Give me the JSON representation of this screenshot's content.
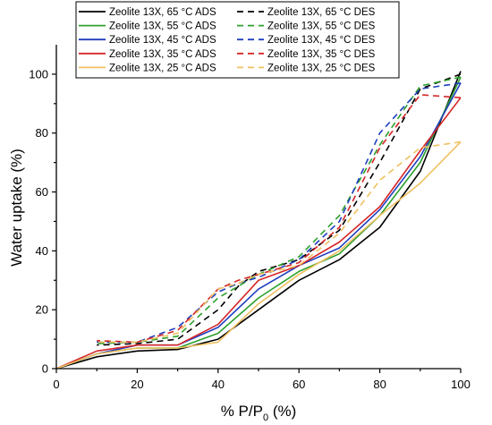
{
  "chart_data": {
    "type": "line",
    "xlabel_parts": [
      "% P/P",
      "0",
      " (%)"
    ],
    "ylabel": "Water uptake (%)",
    "xlim": [
      0,
      100
    ],
    "ylim": [
      0,
      110
    ],
    "x_ticks": [
      0,
      20,
      40,
      60,
      80,
      100
    ],
    "y_ticks": [
      0,
      20,
      40,
      60,
      80,
      100
    ],
    "grid": false,
    "legend_position": "top-center",
    "x_ads": [
      0,
      10,
      20,
      30,
      40,
      50,
      60,
      70,
      80,
      90,
      100
    ],
    "x_des": [
      100,
      90,
      80,
      70,
      60,
      50,
      45,
      40,
      30,
      20,
      10
    ],
    "series": [
      {
        "name": "Zeolite 13X, 65 °C ADS",
        "color": "#000000",
        "dash": "solid",
        "kind": "ads",
        "values": [
          0,
          4,
          6,
          6.5,
          10,
          20,
          30,
          37,
          48,
          67,
          101
        ]
      },
      {
        "name": "Zeolite 13X, 65 °C DES",
        "color": "#000000",
        "dash": "dashed",
        "kind": "des",
        "values": [
          100,
          95,
          70,
          47,
          37,
          33,
          28,
          20,
          10,
          8.5,
          8
        ]
      },
      {
        "name": "Zeolite 13X, 55 °C ADS",
        "color": "#2ca02c",
        "dash": "solid",
        "kind": "ads",
        "values": [
          0,
          5,
          7,
          7,
          12,
          24,
          33,
          39,
          52,
          70,
          99
        ]
      },
      {
        "name": "Zeolite 13X, 55 °C DES",
        "color": "#2ca02c",
        "dash": "dashed",
        "kind": "des",
        "values": [
          99,
          96,
          76,
          52,
          38,
          32,
          28,
          24,
          11,
          9,
          8.5
        ]
      },
      {
        "name": "Zeolite 13X, 45 °C ADS",
        "color": "#1f3fbf",
        "dash": "solid",
        "kind": "ads",
        "values": [
          0,
          5,
          8,
          8,
          14,
          27,
          35,
          41,
          54,
          72,
          97
        ]
      },
      {
        "name": "Zeolite 13X, 45 °C DES",
        "color": "#1f3fbf",
        "dash": "dashed",
        "kind": "des",
        "values": [
          97,
          95,
          80,
          50,
          37,
          31,
          29,
          26,
          14,
          9,
          9
        ]
      },
      {
        "name": "Zeolite 13X, 35 °C ADS",
        "color": "#d62728",
        "dash": "solid",
        "kind": "ads",
        "values": [
          0,
          6,
          8,
          8,
          15,
          30,
          35,
          43,
          55,
          74,
          92
        ]
      },
      {
        "name": "Zeolite 13X, 35 °C DES",
        "color": "#d62728",
        "dash": "dashed",
        "kind": "des",
        "values": [
          92,
          93,
          75,
          48,
          36,
          32,
          30,
          27,
          13,
          9,
          9.5
        ]
      },
      {
        "name": "Zeolite 13X, 25 °C ADS",
        "color": "#f0c060",
        "dash": "solid",
        "kind": "ads",
        "values": [
          0,
          5,
          7,
          7,
          9,
          22,
          32,
          40,
          52,
          63,
          77
        ]
      },
      {
        "name": "Zeolite 13X, 25 °C DES",
        "color": "#f0c060",
        "dash": "dashed",
        "kind": "des",
        "values": [
          77,
          75,
          64,
          46,
          35,
          32,
          29,
          27,
          12,
          9,
          9
        ]
      }
    ]
  }
}
